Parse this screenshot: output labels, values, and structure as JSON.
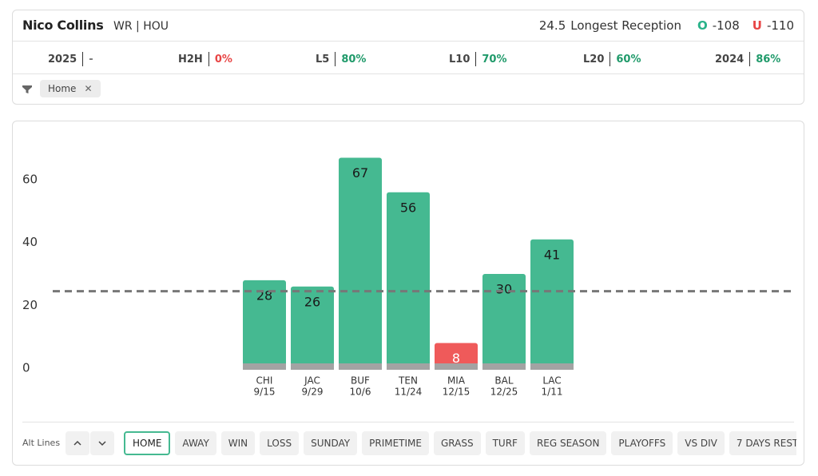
{
  "header": {
    "player": "Nico Collins",
    "meta": "WR | HOU",
    "line": 24.5,
    "market": "Longest Reception",
    "over_label": "O",
    "over_odds": "-108",
    "under_label": "U",
    "under_odds": "-110"
  },
  "stats": [
    {
      "label": "2025",
      "value": "-",
      "color": "#777777"
    },
    {
      "label": "H2H",
      "value": "0%",
      "color": "#e84545"
    },
    {
      "label": "L5",
      "value": "80%",
      "color": "#1f9a6a"
    },
    {
      "label": "L10",
      "value": "70%",
      "color": "#1f9a6a"
    },
    {
      "label": "L20",
      "value": "60%",
      "color": "#1f9a6a"
    },
    {
      "label": "2024",
      "value": "86%",
      "color": "#1f9a6a"
    }
  ],
  "filter": {
    "chip": "Home"
  },
  "chart_data": {
    "type": "bar",
    "categories": [
      "CHI",
      "JAC",
      "BUF",
      "TEN",
      "MIA",
      "BAL",
      "LAC"
    ],
    "dates": [
      "9/15",
      "9/29",
      "10/6",
      "11/24",
      "12/15",
      "12/25",
      "1/11"
    ],
    "values": [
      28,
      26,
      67,
      56,
      8,
      30,
      41
    ],
    "over_color": "#45b991",
    "under_color": "#ef5a5a",
    "ylim": [
      0,
      74
    ],
    "yticks": [
      0,
      20,
      40,
      60
    ]
  },
  "alt_lines": {
    "label": "Alt Lines"
  },
  "buttons": [
    "HOME",
    "AWAY",
    "WIN",
    "LOSS",
    "SUNDAY",
    "PRIMETIME",
    "GRASS",
    "TURF",
    "REG SEASON",
    "PLAYOFFS",
    "VS DIV",
    "7 DAYS REST"
  ],
  "selected_button": 0
}
